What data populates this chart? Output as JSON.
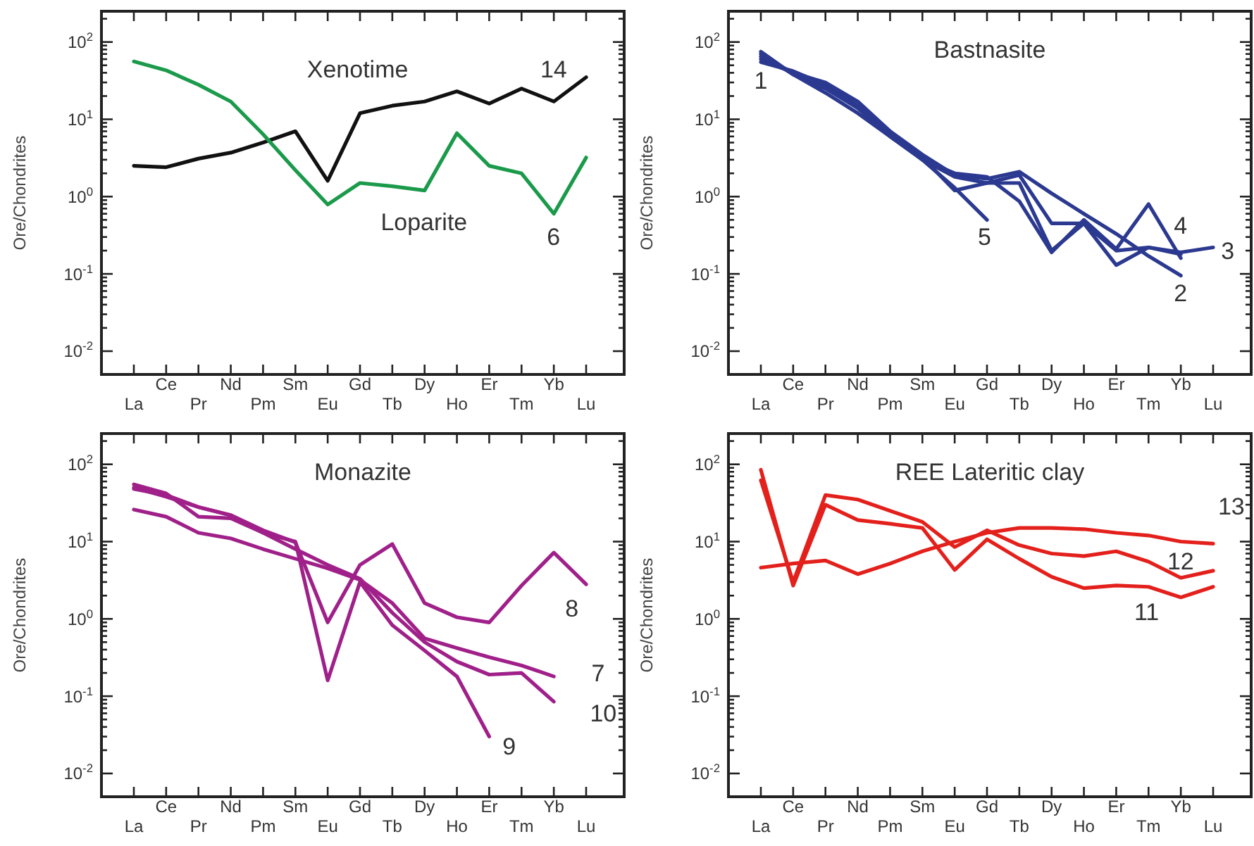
{
  "chart_data": [
    {
      "type": "line",
      "ylabel": "Ore/Chondrites",
      "log": "y",
      "categories": [
        "La",
        "Ce",
        "Pr",
        "Nd",
        "Pm",
        "Sm",
        "Eu",
        "Gd",
        "Tb",
        "Dy",
        "Ho",
        "Er",
        "Tm",
        "Yb",
        "Lu"
      ],
      "ylim": [
        0.005,
        250
      ],
      "yticks": [
        {
          "value": 0.01,
          "label": "10$^{-2}$"
        },
        {
          "value": 0.02,
          "label": null
        },
        {
          "value": 0.03,
          "label": null
        },
        {
          "value": 0.04,
          "label": null
        },
        {
          "value": 0.05,
          "label": null
        },
        {
          "value": 0.06,
          "label": null
        },
        {
          "value": 0.07,
          "label": null
        },
        {
          "value": 0.08,
          "label": null
        },
        {
          "value": 0.09,
          "label": null
        },
        {
          "value": 0.1,
          "label": "10$^{-1}$"
        },
        {
          "value": 0.2,
          "label": null
        },
        {
          "value": 0.3,
          "label": null
        },
        {
          "value": 0.4,
          "label": null
        },
        {
          "value": 0.5,
          "label": null
        },
        {
          "value": 0.6,
          "label": null
        },
        {
          "value": 0.7,
          "label": null
        },
        {
          "value": 0.8,
          "label": null
        },
        {
          "value": 0.9,
          "label": null
        },
        {
          "value": 1,
          "label": "10$^{0}$"
        },
        {
          "value": 2,
          "label": null
        },
        {
          "value": 3,
          "label": null
        },
        {
          "value": 4,
          "label": null
        },
        {
          "value": 5,
          "label": null
        },
        {
          "value": 6,
          "label": null
        },
        {
          "value": 7,
          "label": null
        },
        {
          "value": 8,
          "label": null
        },
        {
          "value": 9,
          "label": null
        },
        {
          "value": 10,
          "label": "10$^{1}$"
        },
        {
          "value": 20,
          "label": null
        },
        {
          "value": 30,
          "label": null
        },
        {
          "value": 40,
          "label": null
        },
        {
          "value": 50,
          "label": null
        },
        {
          "value": 60,
          "label": null
        },
        {
          "value": 70,
          "label": null
        },
        {
          "value": 80,
          "label": null
        },
        {
          "value": 90,
          "label": null
        },
        {
          "value": 100,
          "label": "10$^{2}$"
        },
        {
          "value": 200,
          "label": null
        }
      ],
      "series": [
        {
          "name": "14",
          "color": "#111111",
          "values": [
            2.5,
            2.4,
            3.1,
            3.7,
            5.0,
            7.0,
            1.6,
            12,
            15,
            17,
            23,
            16,
            25,
            17,
            35
          ]
        },
        {
          "name": "6",
          "color": "#1a9a4a",
          "values": [
            56,
            43,
            28,
            17,
            6.4,
            2.2,
            0.79,
            1.5,
            1.36,
            1.2,
            6.6,
            2.5,
            2.0,
            0.6,
            3.2
          ]
        }
      ],
      "annotations": [
        "Xenotime",
        "Loparite"
      ]
    },
    {
      "type": "line",
      "title": "Bastnasite",
      "ylabel": "Ore/Chondrites",
      "log": "y",
      "categories": [
        "La",
        "Ce",
        "Pr",
        "Nd",
        "Pm",
        "Sm",
        "Eu",
        "Gd",
        "Tb",
        "Dy",
        "Ho",
        "Er",
        "Tm",
        "Yb",
        "Lu"
      ],
      "ylim": [
        0.005,
        250
      ],
      "yticks": [
        {
          "value": 0.01,
          "label": "10$^{-2}$"
        },
        {
          "value": 0.02,
          "label": null
        },
        {
          "value": 0.03,
          "label": null
        },
        {
          "value": 0.04,
          "label": null
        },
        {
          "value": 0.05,
          "label": null
        },
        {
          "value": 0.06,
          "label": null
        },
        {
          "value": 0.07,
          "label": null
        },
        {
          "value": 0.08,
          "label": null
        },
        {
          "value": 0.09,
          "label": null
        },
        {
          "value": 0.1,
          "label": "10$^{-1}$"
        },
        {
          "value": 0.2,
          "label": null
        },
        {
          "value": 0.3,
          "label": null
        },
        {
          "value": 0.4,
          "label": null
        },
        {
          "value": 0.5,
          "label": null
        },
        {
          "value": 0.6,
          "label": null
        },
        {
          "value": 0.7,
          "label": null
        },
        {
          "value": 0.8,
          "label": null
        },
        {
          "value": 0.9,
          "label": null
        },
        {
          "value": 1,
          "label": "10$^{0}$"
        },
        {
          "value": 2,
          "label": null
        },
        {
          "value": 3,
          "label": null
        },
        {
          "value": 4,
          "label": null
        },
        {
          "value": 5,
          "label": null
        },
        {
          "value": 6,
          "label": null
        },
        {
          "value": 7,
          "label": null
        },
        {
          "value": 8,
          "label": null
        },
        {
          "value": 9,
          "label": null
        },
        {
          "value": 10,
          "label": "10$^{1}$"
        },
        {
          "value": 20,
          "label": null
        },
        {
          "value": 30,
          "label": null
        },
        {
          "value": 40,
          "label": null
        },
        {
          "value": 50,
          "label": null
        },
        {
          "value": 60,
          "label": null
        },
        {
          "value": 70,
          "label": null
        },
        {
          "value": 80,
          "label": null
        },
        {
          "value": 90,
          "label": null
        },
        {
          "value": 100,
          "label": "10$^{2}$"
        },
        {
          "value": 200,
          "label": null
        }
      ],
      "series": [
        {
          "name": "1",
          "color": "#2b3990",
          "values": [
            55,
            42,
            28,
            15,
            7,
            3.2,
            1.2,
            1.5,
            1.9,
            0.45,
            0.45,
            0.2,
            0.22,
            0.18,
            null
          ]
        },
        {
          "name": "2",
          "color": "#2b3990",
          "values": [
            60,
            40,
            30,
            17,
            7,
            3.5,
            1.9,
            1.7,
            2.1,
            1.1,
            0.6,
            0.33,
            0.17,
            0.095,
            null
          ]
        },
        {
          "name": "3",
          "color": "#2b3990",
          "values": [
            75,
            38,
            25,
            14,
            6.5,
            3,
            1.8,
            1.5,
            1.5,
            0.2,
            0.45,
            0.13,
            0.22,
            0.19,
            0.22
          ]
        },
        {
          "name": "4",
          "color": "#2b3990",
          "values": [
            65,
            40,
            26,
            14,
            6,
            3,
            2,
            1.8,
            0.87,
            0.19,
            0.5,
            0.21,
            0.8,
            0.16,
            null
          ]
        },
        {
          "name": "5",
          "color": "#2b3990",
          "values": [
            70,
            38,
            22,
            12,
            6,
            3,
            1.3,
            0.5,
            null,
            null,
            null,
            null,
            null,
            null,
            null
          ]
        }
      ]
    },
    {
      "type": "line",
      "title": "Monazite",
      "ylabel": "Ore/Chondrites",
      "log": "y",
      "categories": [
        "La",
        "Ce",
        "Pr",
        "Nd",
        "Pm",
        "Sm",
        "Eu",
        "Gd",
        "Tb",
        "Dy",
        "Ho",
        "Er",
        "Tm",
        "Yb",
        "Lu"
      ],
      "ylim": [
        0.005,
        250
      ],
      "yticks": [
        {
          "value": 0.01,
          "label": "10$^{-2}$"
        },
        {
          "value": 0.02,
          "label": null
        },
        {
          "value": 0.03,
          "label": null
        },
        {
          "value": 0.04,
          "label": null
        },
        {
          "value": 0.05,
          "label": null
        },
        {
          "value": 0.06,
          "label": null
        },
        {
          "value": 0.07,
          "label": null
        },
        {
          "value": 0.08,
          "label": null
        },
        {
          "value": 0.09,
          "label": null
        },
        {
          "value": 0.1,
          "label": "10$^{-1}$"
        },
        {
          "value": 0.2,
          "label": null
        },
        {
          "value": 0.3,
          "label": null
        },
        {
          "value": 0.4,
          "label": null
        },
        {
          "value": 0.5,
          "label": null
        },
        {
          "value": 0.6,
          "label": null
        },
        {
          "value": 0.7,
          "label": null
        },
        {
          "value": 0.8,
          "label": null
        },
        {
          "value": 0.9,
          "label": null
        },
        {
          "value": 1,
          "label": "10$^{0}$"
        },
        {
          "value": 2,
          "label": null
        },
        {
          "value": 3,
          "label": null
        },
        {
          "value": 4,
          "label": null
        },
        {
          "value": 5,
          "label": null
        },
        {
          "value": 6,
          "label": null
        },
        {
          "value": 7,
          "label": null
        },
        {
          "value": 8,
          "label": null
        },
        {
          "value": 9,
          "label": null
        },
        {
          "value": 10,
          "label": "10$^{1}$"
        },
        {
          "value": 20,
          "label": null
        },
        {
          "value": 30,
          "label": null
        },
        {
          "value": 40,
          "label": null
        },
        {
          "value": 50,
          "label": null
        },
        {
          "value": 60,
          "label": null
        },
        {
          "value": 70,
          "label": null
        },
        {
          "value": 80,
          "label": null
        },
        {
          "value": 90,
          "label": null
        },
        {
          "value": 100,
          "label": "10$^{2}$"
        },
        {
          "value": 200,
          "label": null
        }
      ],
      "series": [
        {
          "name": "8",
          "color": "#a0208a",
          "values": [
            48,
            40,
            28,
            22,
            14,
            9.8,
            0.9,
            5,
            9.3,
            1.6,
            1.05,
            0.9,
            2.7,
            7.2,
            2.8
          ]
        },
        {
          "name": "9",
          "color": "#a0208a",
          "values": [
            55,
            42,
            21,
            20,
            13,
            10,
            0.16,
            3,
            0.83,
            0.39,
            0.18,
            0.03,
            null,
            null,
            null
          ]
        },
        {
          "name": "10",
          "color": "#a0208a",
          "values": [
            50,
            38,
            28,
            22,
            13,
            8,
            5,
            3.3,
            1.2,
            0.5,
            0.28,
            0.19,
            0.2,
            0.085,
            null
          ]
        },
        {
          "name": "7",
          "color": "#a0208a",
          "values": [
            26,
            21,
            13,
            11,
            8,
            6,
            4.5,
            3.2,
            1.6,
            0.56,
            0.42,
            0.32,
            0.25,
            0.18,
            null
          ]
        }
      ]
    },
    {
      "type": "line",
      "title": "REE Lateritic clay",
      "ylabel": "Ore/Chondrites",
      "log": "y",
      "categories": [
        "La",
        "Ce",
        "Pr",
        "Nd",
        "Pm",
        "Sm",
        "Eu",
        "Gd",
        "Tb",
        "Dy",
        "Ho",
        "Er",
        "Tm",
        "Yb",
        "Lu"
      ],
      "ylim": [
        0.005,
        250
      ],
      "yticks": [
        {
          "value": 0.01,
          "label": "10$^{-2}$"
        },
        {
          "value": 0.02,
          "label": null
        },
        {
          "value": 0.03,
          "label": null
        },
        {
          "value": 0.04,
          "label": null
        },
        {
          "value": 0.05,
          "label": null
        },
        {
          "value": 0.06,
          "label": null
        },
        {
          "value": 0.07,
          "label": null
        },
        {
          "value": 0.08,
          "label": null
        },
        {
          "value": 0.09,
          "label": null
        },
        {
          "value": 0.1,
          "label": "10$^{-1}$"
        },
        {
          "value": 0.2,
          "label": null
        },
        {
          "value": 0.3,
          "label": null
        },
        {
          "value": 0.4,
          "label": null
        },
        {
          "value": 0.5,
          "label": null
        },
        {
          "value": 0.6,
          "label": null
        },
        {
          "value": 0.7,
          "label": null
        },
        {
          "value": 0.8,
          "label": null
        },
        {
          "value": 0.9,
          "label": null
        },
        {
          "value": 1,
          "label": "10$^{0}$"
        },
        {
          "value": 2,
          "label": null
        },
        {
          "value": 3,
          "label": null
        },
        {
          "value": 4,
          "label": null
        },
        {
          "value": 5,
          "label": null
        },
        {
          "value": 6,
          "label": null
        },
        {
          "value": 7,
          "label": null
        },
        {
          "value": 8,
          "label": null
        },
        {
          "value": 9,
          "label": null
        },
        {
          "value": 10,
          "label": "10$^{1}$"
        },
        {
          "value": 20,
          "label": null
        },
        {
          "value": 30,
          "label": null
        },
        {
          "value": 40,
          "label": null
        },
        {
          "value": 50,
          "label": null
        },
        {
          "value": 60,
          "label": null
        },
        {
          "value": 70,
          "label": null
        },
        {
          "value": 80,
          "label": null
        },
        {
          "value": 90,
          "label": null
        },
        {
          "value": 100,
          "label": "10$^{2}$"
        },
        {
          "value": 200,
          "label": null
        }
      ],
      "series": [
        {
          "name": "13",
          "color": "#e3201b",
          "values": [
            4.6,
            5.2,
            5.7,
            3.8,
            5.2,
            7.5,
            10,
            13,
            15,
            15,
            14.5,
            13,
            12,
            10,
            9.4
          ]
        },
        {
          "name": "12",
          "color": "#e3201b",
          "values": [
            62,
            3,
            40,
            35,
            25,
            18,
            8.5,
            14,
            9,
            7,
            6.5,
            7.5,
            5.5,
            3.4,
            4.2
          ]
        },
        {
          "name": "11",
          "color": "#e3201b",
          "values": [
            85,
            2.7,
            30,
            19,
            17,
            15,
            4.3,
            10.7,
            6,
            3.5,
            2.5,
            2.7,
            2.6,
            1.9,
            2.6
          ]
        }
      ]
    }
  ]
}
